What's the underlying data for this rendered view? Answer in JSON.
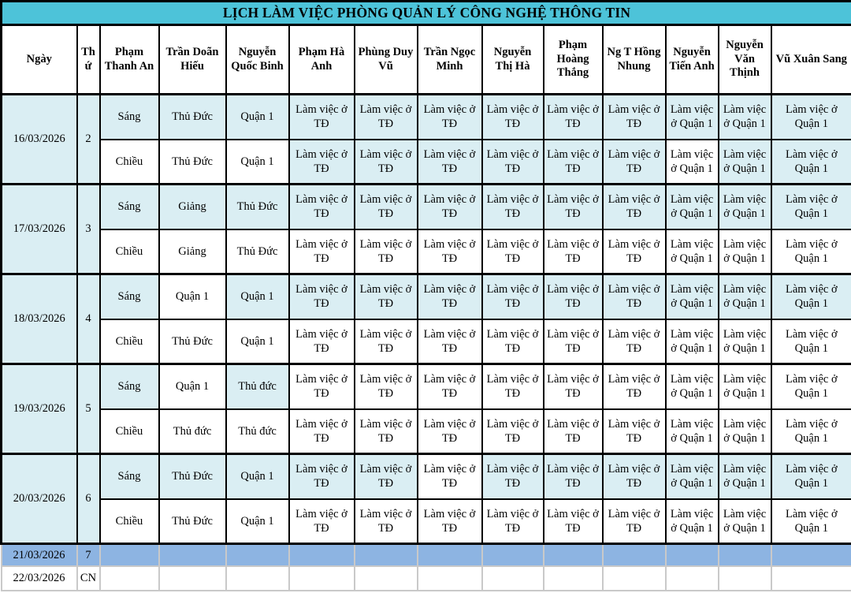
{
  "title": "LỊCH LÀM VIỆC PHÒNG QUẢN LÝ CÔNG NGHỆ THÔNG TIN",
  "colors": {
    "title_bg": "#4dc3d9",
    "cell_cyan": "#daeef3",
    "white": "#ffffff",
    "weekend_blue": "#8db4e2",
    "border_black": "#000000",
    "weekend_grid_gray": "#c9c9c9"
  },
  "columns": [
    "Ngày",
    "Thứ",
    "Phạm Thanh An",
    "Trần Doãn Hiếu",
    "Nguyễn Quốc Binh",
    "Phạm Hà Anh",
    "Phùng Duy Vũ",
    "Trần Ngọc Minh",
    "Nguyễn Thị Hà",
    "Phạm Hoàng Thắng",
    "Ng T Hồng Nhung",
    "Nguyễn Tiến Anh",
    "Nguyễn Văn Thịnh",
    "Vũ Xuân Sang"
  ],
  "groups": [
    {
      "date": "16/03/2026",
      "weekday": "2",
      "rows": [
        {
          "period": {
            "text": "Sáng",
            "bg": "cyan"
          },
          "cells": [
            {
              "text": "Thủ Đức",
              "bg": "cyan"
            },
            {
              "text": "Quận 1",
              "bg": "cyan"
            },
            {
              "text": "Làm việc ở TĐ",
              "bg": "cyan"
            },
            {
              "text": "Làm việc ở TĐ",
              "bg": "cyan"
            },
            {
              "text": "Làm việc ở TĐ",
              "bg": "cyan"
            },
            {
              "text": "Làm việc ở TĐ",
              "bg": "cyan"
            },
            {
              "text": "Làm việc ở TĐ",
              "bg": "cyan"
            },
            {
              "text": "Làm việc ở TĐ",
              "bg": "cyan"
            },
            {
              "text": "Làm việc ở Quận 1",
              "bg": "cyan"
            },
            {
              "text": "Làm việc ở Quận 1",
              "bg": "cyan"
            },
            {
              "text": "Làm việc ở Quận 1",
              "bg": "cyan"
            }
          ]
        },
        {
          "period": {
            "text": "Chiều",
            "bg": "white"
          },
          "cells": [
            {
              "text": "Thủ Đức",
              "bg": "white"
            },
            {
              "text": "Quận 1",
              "bg": "white"
            },
            {
              "text": "Làm việc ở TĐ",
              "bg": "cyan"
            },
            {
              "text": "Làm việc ở TĐ",
              "bg": "cyan"
            },
            {
              "text": "Làm việc ở TĐ",
              "bg": "cyan"
            },
            {
              "text": "Làm việc ở TĐ",
              "bg": "cyan"
            },
            {
              "text": "Làm việc ở TĐ",
              "bg": "cyan"
            },
            {
              "text": "Làm việc ở TĐ",
              "bg": "cyan"
            },
            {
              "text": "Làm việc ở Quận 1",
              "bg": "white"
            },
            {
              "text": "Làm việc ở Quận 1",
              "bg": "cyan"
            },
            {
              "text": "Làm việc ở Quận 1",
              "bg": "cyan"
            }
          ]
        }
      ]
    },
    {
      "date": "17/03/2026",
      "weekday": "3",
      "rows": [
        {
          "period": {
            "text": "Sáng",
            "bg": "cyan"
          },
          "cells": [
            {
              "text": "Giảng",
              "bg": "cyan"
            },
            {
              "text": "Thủ Đức",
              "bg": "cyan"
            },
            {
              "text": "Làm việc ở TĐ",
              "bg": "cyan"
            },
            {
              "text": "Làm việc ở TĐ",
              "bg": "cyan"
            },
            {
              "text": "Làm việc ở TĐ",
              "bg": "cyan"
            },
            {
              "text": "Làm việc ở TĐ",
              "bg": "cyan"
            },
            {
              "text": "Làm việc ở TĐ",
              "bg": "cyan"
            },
            {
              "text": "Làm việc ở TĐ",
              "bg": "cyan"
            },
            {
              "text": "Làm việc ở Quận 1",
              "bg": "cyan"
            },
            {
              "text": "Làm việc ở Quận 1",
              "bg": "cyan"
            },
            {
              "text": "Làm việc ở Quận 1",
              "bg": "cyan"
            }
          ]
        },
        {
          "period": {
            "text": "Chiều",
            "bg": "white"
          },
          "cells": [
            {
              "text": "Giảng",
              "bg": "white"
            },
            {
              "text": "Thủ Đức",
              "bg": "white"
            },
            {
              "text": "Làm việc ở TĐ",
              "bg": "white"
            },
            {
              "text": "Làm việc ở TĐ",
              "bg": "white"
            },
            {
              "text": "Làm việc ở TĐ",
              "bg": "white"
            },
            {
              "text": "Làm việc ở TĐ",
              "bg": "white"
            },
            {
              "text": "Làm việc ở TĐ",
              "bg": "white"
            },
            {
              "text": "Làm việc ở TĐ",
              "bg": "white"
            },
            {
              "text": "Làm việc ở Quận 1",
              "bg": "white"
            },
            {
              "text": "Làm việc ở Quận 1",
              "bg": "white"
            },
            {
              "text": "Làm việc ở Quận 1",
              "bg": "white"
            }
          ]
        }
      ]
    },
    {
      "date": "18/03/2026",
      "weekday": "4",
      "rows": [
        {
          "period": {
            "text": "Sáng",
            "bg": "cyan"
          },
          "cells": [
            {
              "text": "Quận 1",
              "bg": "white"
            },
            {
              "text": "Quận 1",
              "bg": "cyan"
            },
            {
              "text": "Làm việc ở TĐ",
              "bg": "cyan"
            },
            {
              "text": "Làm việc ở TĐ",
              "bg": "cyan"
            },
            {
              "text": "Làm việc ở TĐ",
              "bg": "cyan"
            },
            {
              "text": "Làm việc ở TĐ",
              "bg": "cyan"
            },
            {
              "text": "Làm việc ở TĐ",
              "bg": "cyan"
            },
            {
              "text": "Làm việc ở TĐ",
              "bg": "cyan"
            },
            {
              "text": "Làm việc ở Quận 1",
              "bg": "cyan"
            },
            {
              "text": "Làm việc ở Quận 1",
              "bg": "cyan"
            },
            {
              "text": "Làm việc ở Quận 1",
              "bg": "cyan"
            }
          ]
        },
        {
          "period": {
            "text": "Chiều",
            "bg": "white"
          },
          "cells": [
            {
              "text": "Thủ Đức",
              "bg": "white"
            },
            {
              "text": "Quận 1",
              "bg": "white"
            },
            {
              "text": "Làm việc ở TĐ",
              "bg": "white"
            },
            {
              "text": "Làm việc ở TĐ",
              "bg": "white"
            },
            {
              "text": "Làm việc ở TĐ",
              "bg": "white"
            },
            {
              "text": "Làm việc ở TĐ",
              "bg": "white"
            },
            {
              "text": "Làm việc ở TĐ",
              "bg": "white"
            },
            {
              "text": "Làm việc ở TĐ",
              "bg": "white"
            },
            {
              "text": "Làm việc ở Quận 1",
              "bg": "white"
            },
            {
              "text": "Làm việc ở Quận 1",
              "bg": "white"
            },
            {
              "text": "Làm việc ở Quận 1",
              "bg": "white"
            }
          ]
        }
      ]
    },
    {
      "date": "19/03/2026",
      "weekday": "5",
      "rows": [
        {
          "period": {
            "text": "Sáng",
            "bg": "cyan"
          },
          "cells": [
            {
              "text": "Quận 1",
              "bg": "white"
            },
            {
              "text": "Thủ đức",
              "bg": "cyan"
            },
            {
              "text": "Làm việc ở TĐ",
              "bg": "white"
            },
            {
              "text": "Làm việc ở TĐ",
              "bg": "white"
            },
            {
              "text": "Làm việc ở TĐ",
              "bg": "white"
            },
            {
              "text": "Làm việc ở TĐ",
              "bg": "white"
            },
            {
              "text": "Làm việc ở TĐ",
              "bg": "white"
            },
            {
              "text": "Làm việc ở TĐ",
              "bg": "white"
            },
            {
              "text": "Làm việc ở Quận 1",
              "bg": "white"
            },
            {
              "text": "Làm việc ở Quận 1",
              "bg": "white"
            },
            {
              "text": "Làm việc ở Quận 1",
              "bg": "white"
            }
          ]
        },
        {
          "period": {
            "text": "Chiều",
            "bg": "white"
          },
          "cells": [
            {
              "text": "Thủ đức",
              "bg": "white"
            },
            {
              "text": "Thủ đức",
              "bg": "white"
            },
            {
              "text": "Làm việc ở TĐ",
              "bg": "white"
            },
            {
              "text": "Làm việc ở TĐ",
              "bg": "white"
            },
            {
              "text": "Làm việc ở TĐ",
              "bg": "white"
            },
            {
              "text": "Làm việc ở TĐ",
              "bg": "white"
            },
            {
              "text": "Làm việc ở TĐ",
              "bg": "white"
            },
            {
              "text": "Làm việc ở TĐ",
              "bg": "white"
            },
            {
              "text": "Làm việc ở Quận 1",
              "bg": "white"
            },
            {
              "text": "Làm việc ở Quận 1",
              "bg": "white"
            },
            {
              "text": "Làm việc ở Quận 1",
              "bg": "white"
            }
          ]
        }
      ]
    },
    {
      "date": "20/03/2026",
      "weekday": "6",
      "rows": [
        {
          "period": {
            "text": "Sáng",
            "bg": "cyan"
          },
          "cells": [
            {
              "text": "Thủ Đức",
              "bg": "cyan"
            },
            {
              "text": "Quận 1",
              "bg": "cyan"
            },
            {
              "text": "Làm việc ở TĐ",
              "bg": "cyan"
            },
            {
              "text": "Làm việc ở TĐ",
              "bg": "cyan"
            },
            {
              "text": "Làm việc ở TĐ",
              "bg": "white"
            },
            {
              "text": "Làm việc ở TĐ",
              "bg": "cyan"
            },
            {
              "text": "Làm việc ở TĐ",
              "bg": "cyan"
            },
            {
              "text": "Làm việc ở TĐ",
              "bg": "cyan"
            },
            {
              "text": "Làm việc ở Quận 1",
              "bg": "cyan"
            },
            {
              "text": "Làm việc ở Quận 1",
              "bg": "cyan"
            },
            {
              "text": "Làm việc ở Quận 1",
              "bg": "cyan"
            }
          ]
        },
        {
          "period": {
            "text": "Chiều",
            "bg": "white"
          },
          "cells": [
            {
              "text": "Thủ Đức",
              "bg": "white"
            },
            {
              "text": "Quận 1",
              "bg": "white"
            },
            {
              "text": "Làm việc ở TĐ",
              "bg": "white"
            },
            {
              "text": "Làm việc ở TĐ",
              "bg": "white"
            },
            {
              "text": "Làm việc ở TĐ",
              "bg": "white"
            },
            {
              "text": "Làm việc ở TĐ",
              "bg": "white"
            },
            {
              "text": "Làm việc ở TĐ",
              "bg": "white"
            },
            {
              "text": "Làm việc ở TĐ",
              "bg": "white"
            },
            {
              "text": "Làm việc ở Quận 1",
              "bg": "white"
            },
            {
              "text": "Làm việc ở Quận 1",
              "bg": "white"
            },
            {
              "text": "Làm việc ở Quận 1",
              "bg": "white"
            }
          ]
        }
      ]
    }
  ],
  "weekend_rows": [
    {
      "date": "21/03/2026",
      "weekday": "7",
      "bg": "blue",
      "cells": [
        "",
        "",
        "",
        "",
        "",
        "",
        "",
        "",
        "",
        "",
        "",
        ""
      ]
    },
    {
      "date": "22/03/2026",
      "weekday": "CN",
      "bg": "white",
      "cells": [
        "",
        "",
        "",
        "",
        "",
        "",
        "",
        "",
        "",
        "",
        "",
        ""
      ]
    }
  ]
}
